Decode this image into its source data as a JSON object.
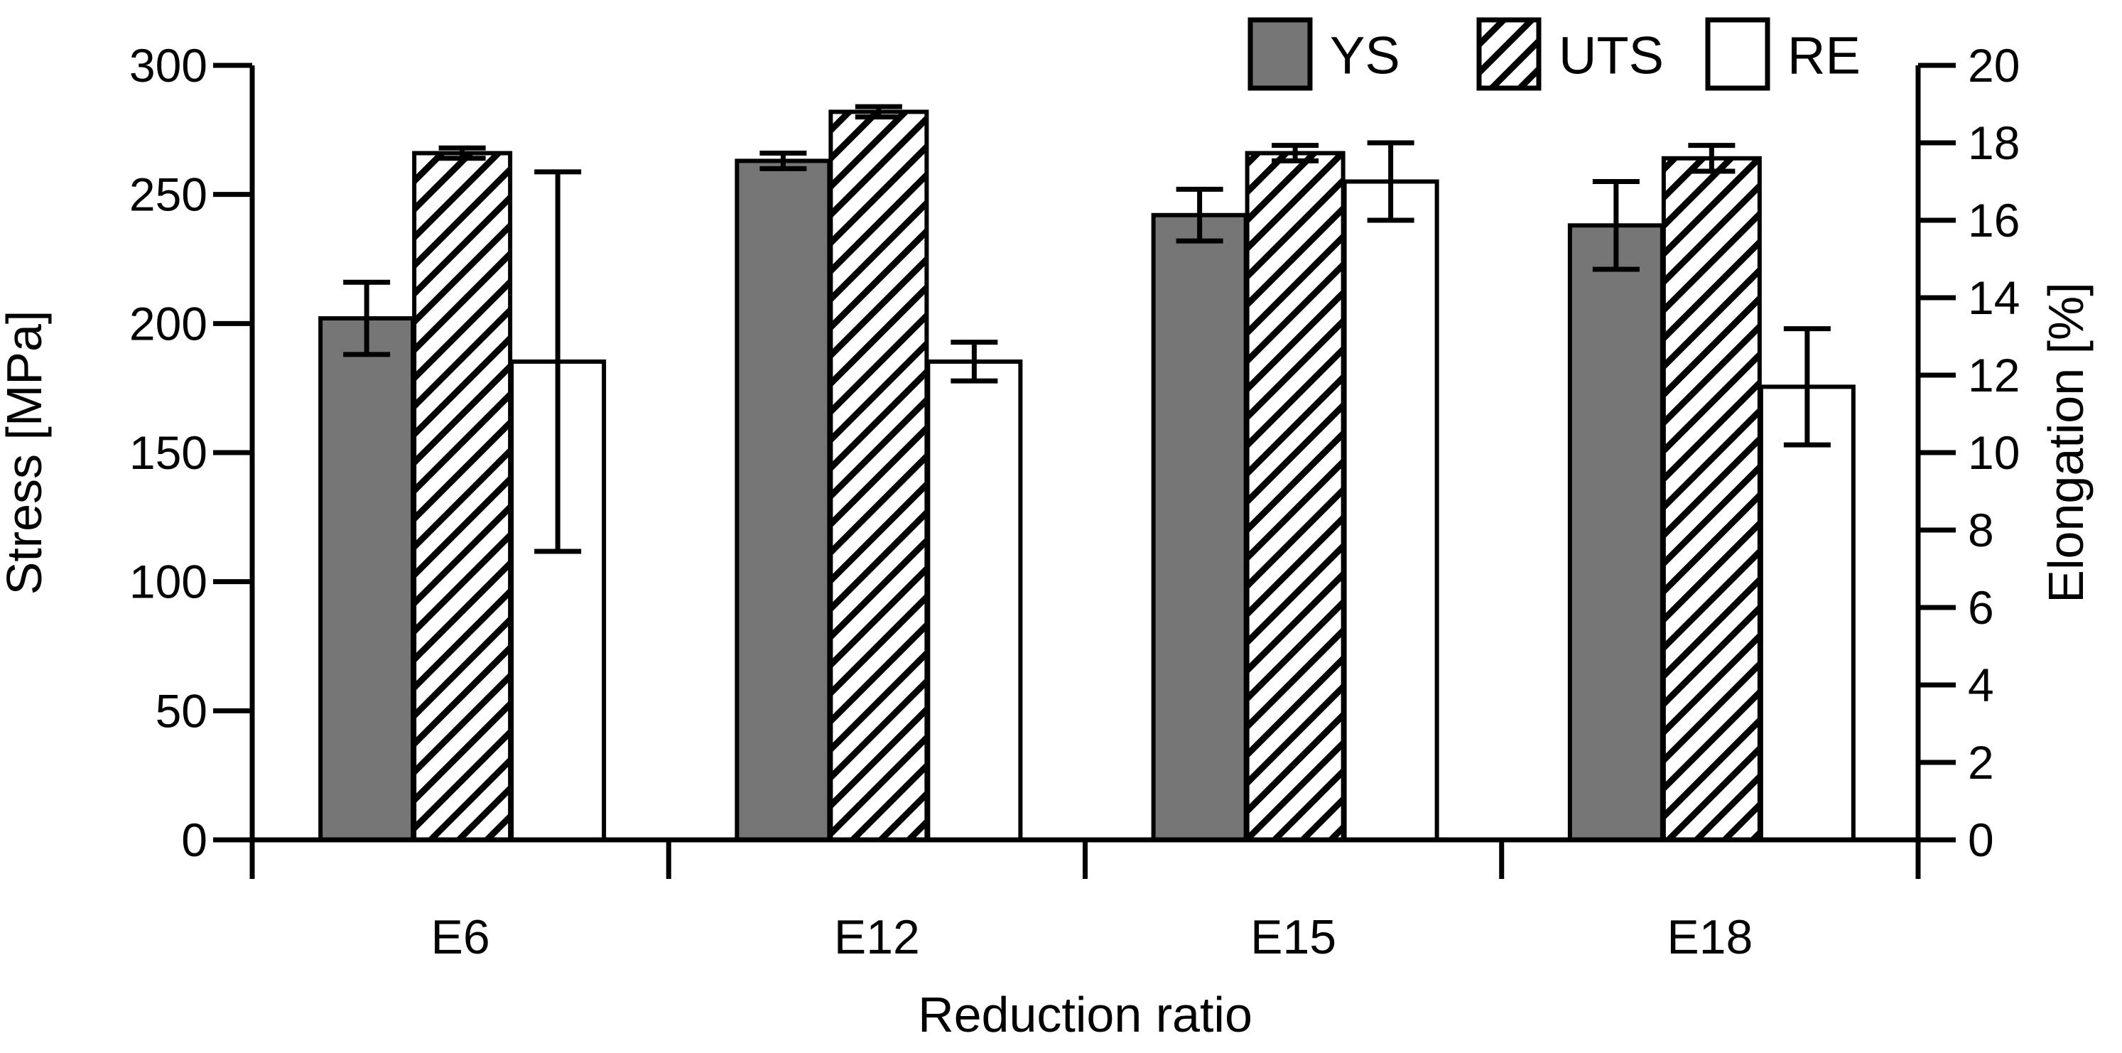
{
  "chart_data": {
    "type": "bar",
    "title": "",
    "xlabel": "Reduction ratio",
    "categories": [
      "E6",
      "E12",
      "E15",
      "E18"
    ],
    "left_axis": {
      "label": "Stress [MPa]",
      "min": 0,
      "max": 300,
      "step": 50
    },
    "right_axis": {
      "label": "Elongation [%]",
      "min": 0,
      "max": 20,
      "step": 2
    },
    "series": [
      {
        "name": "YS",
        "axis": "left",
        "style": "solid",
        "fill": "#767676",
        "values": [
          202,
          263,
          242,
          238
        ],
        "errors": [
          14,
          3,
          10,
          17
        ]
      },
      {
        "name": "UTS",
        "axis": "left",
        "style": "hatch",
        "fill": "hatch",
        "values": [
          266,
          282,
          266,
          264
        ],
        "errors": [
          2,
          2,
          3,
          5
        ]
      },
      {
        "name": "RE",
        "axis": "right",
        "style": "open",
        "fill": "#ffffff",
        "values": [
          12.35,
          12.35,
          17.0,
          11.7
        ],
        "errors": [
          4.9,
          0.5,
          1.0,
          1.5
        ]
      }
    ],
    "legend": {
      "position": "top-right",
      "entries": [
        "YS",
        "UTS",
        "RE"
      ]
    },
    "colors": {
      "bar_gray": "#767676",
      "outline": "#000000",
      "background": "#ffffff",
      "text": "#000000"
    },
    "grid": false
  }
}
